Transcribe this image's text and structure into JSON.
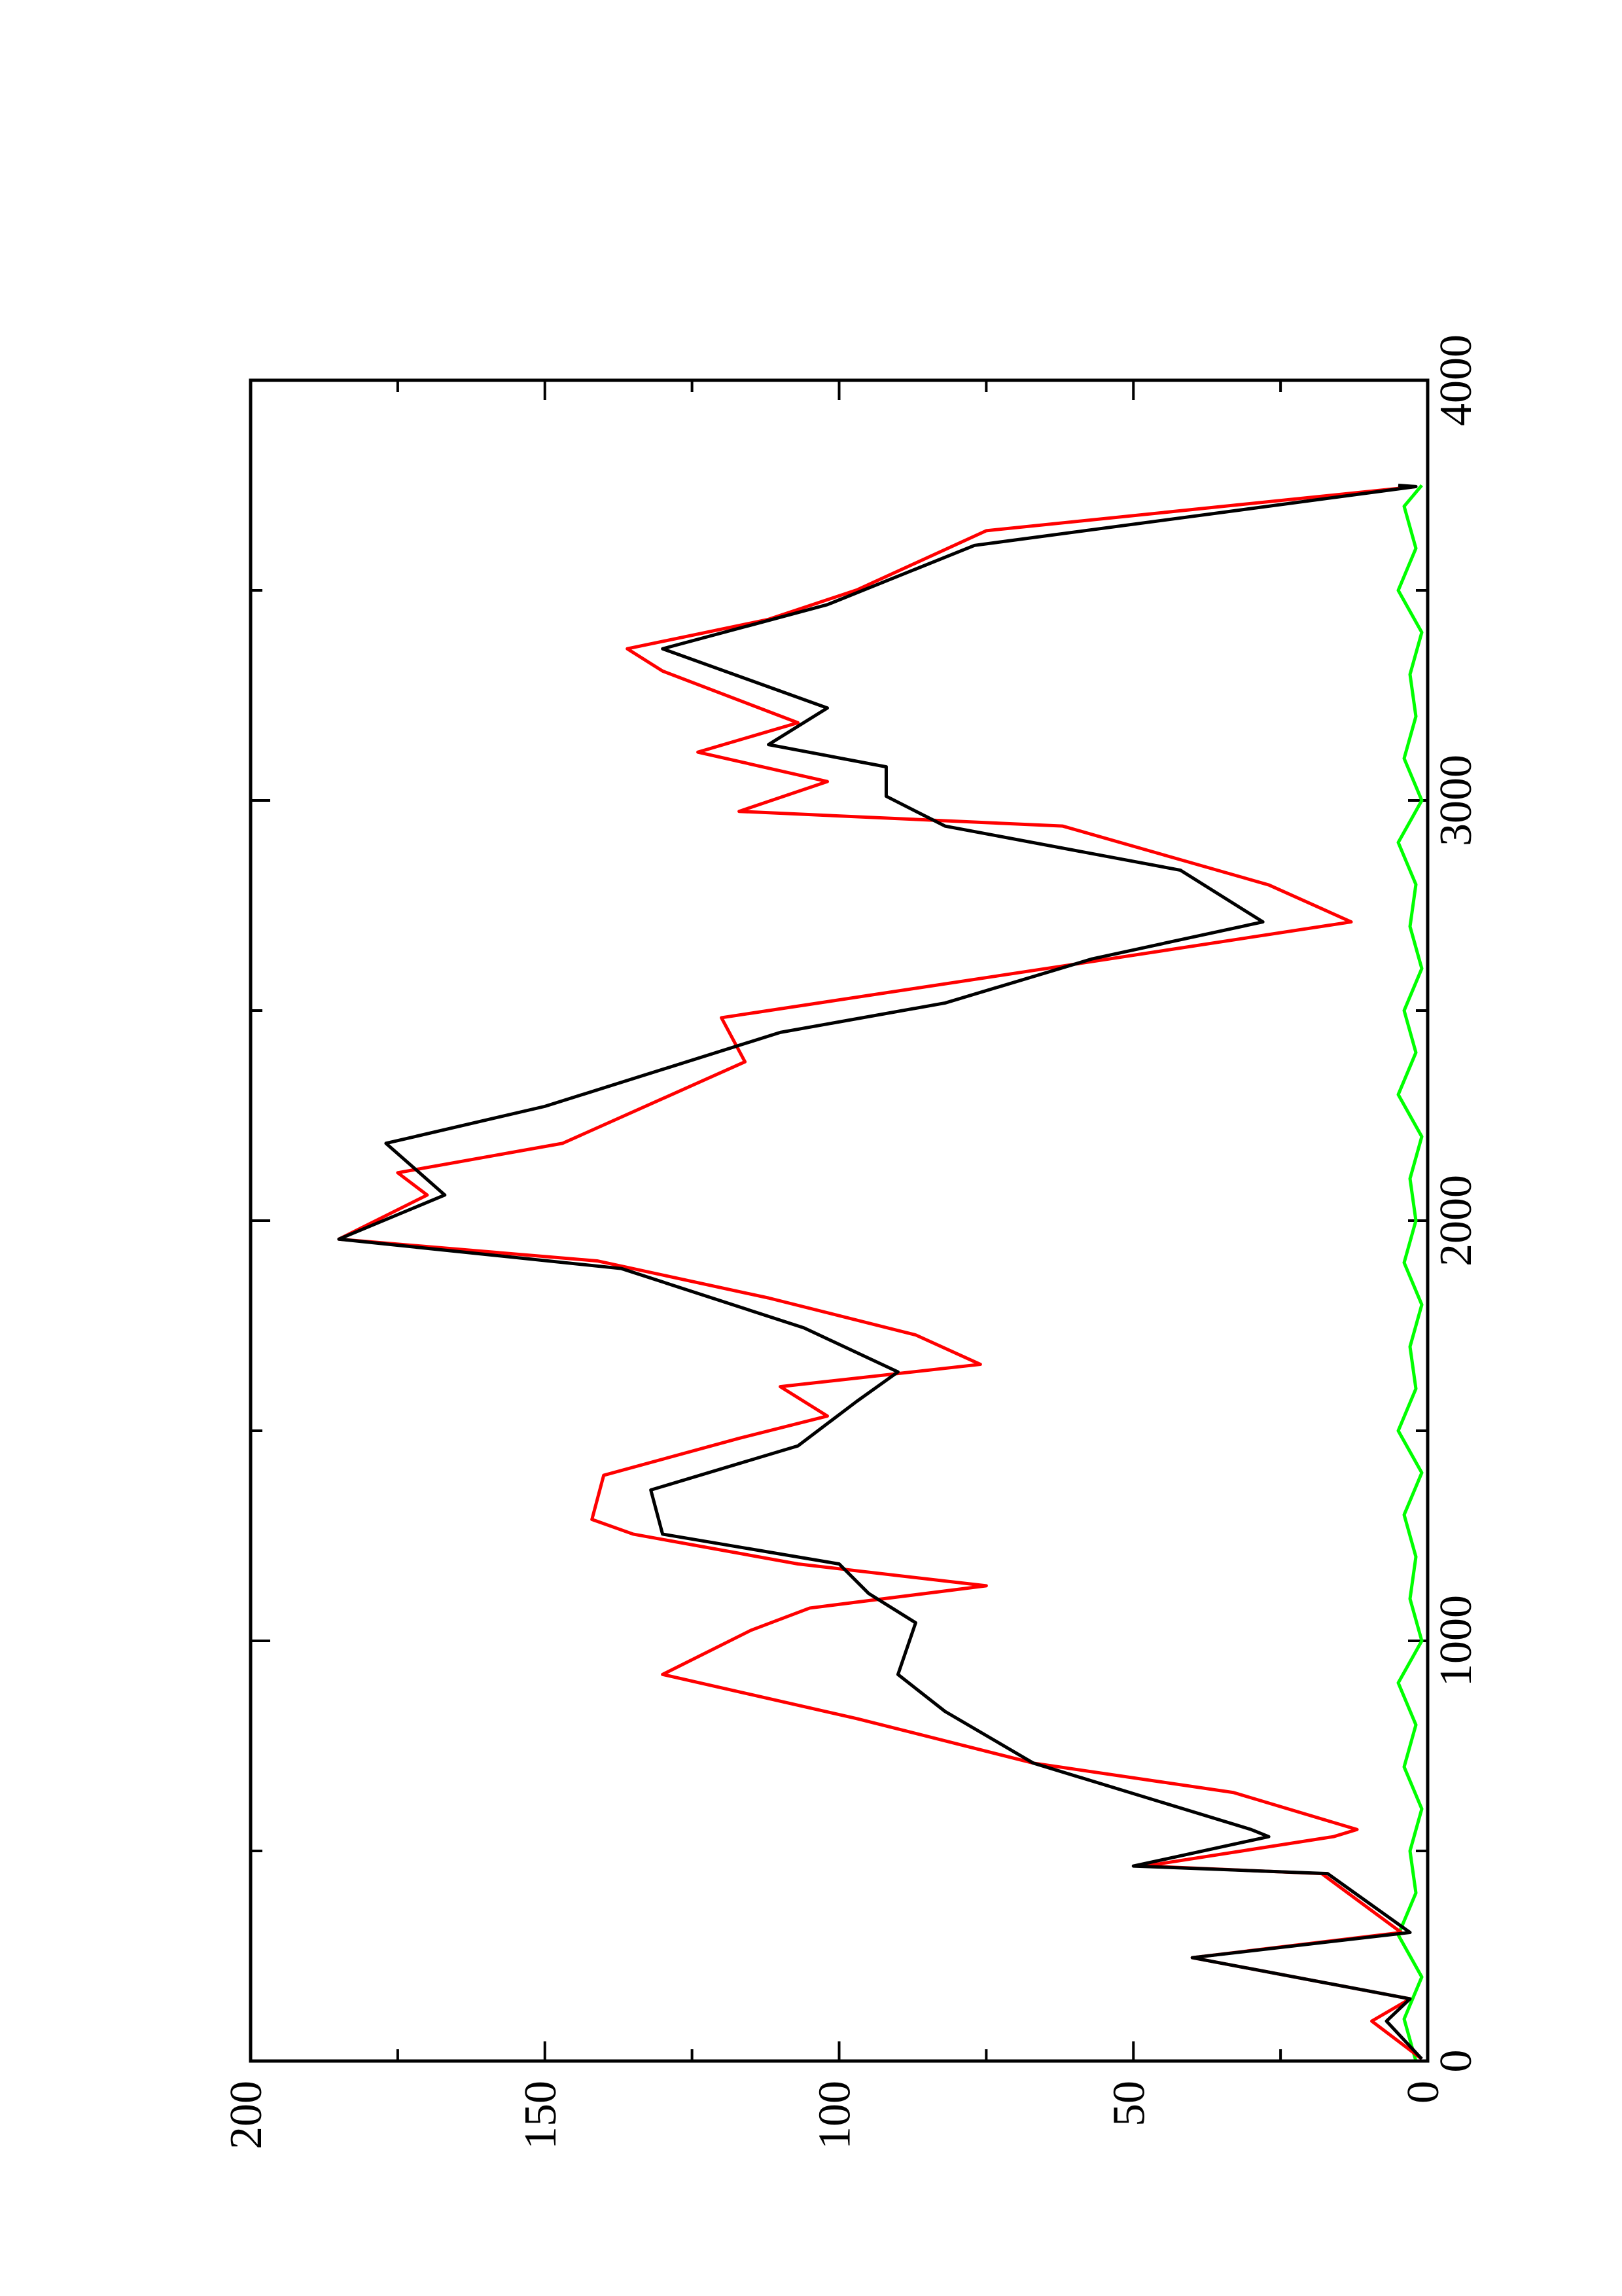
{
  "chart_data": {
    "type": "line",
    "orientation": "rotated",
    "xlim": [
      0,
      4000
    ],
    "xticks": [
      0,
      1000,
      2000,
      3000,
      4000
    ],
    "xticks_minor": [
      500,
      1500,
      2500,
      3500
    ],
    "ylim": [
      0,
      200
    ],
    "yticks": [
      0,
      50,
      100,
      150,
      200
    ],
    "yticks_minor": [
      25,
      75,
      125,
      175
    ],
    "series": [
      {
        "color": "#000000",
        "x": [
          5,
          95,
          148,
          246,
          306,
          446,
          464,
          534,
          551,
          709,
          832,
          920,
          1043,
          1113,
          1183,
          1254,
          1359,
          1464,
          1570,
          1640,
          1745,
          1886,
          1956,
          2061,
          2184,
          2272,
          2448,
          2518,
          2623,
          2711,
          2834,
          2939,
          3010,
          3080,
          3133,
          3220,
          3361,
          3466,
          3607,
          3747,
          3750
        ],
        "values": [
          1,
          7,
          3,
          40,
          3,
          17,
          50,
          27,
          30,
          67,
          82,
          90,
          87,
          95,
          100,
          130,
          132,
          107,
          97,
          90,
          106,
          137,
          185,
          167,
          177,
          150,
          110,
          82,
          57,
          28,
          42,
          82,
          92,
          92,
          112,
          102,
          130,
          102,
          77,
          2,
          5
        ]
      },
      {
        "color": "#ff0000",
        "x": [
          5,
          95,
          148,
          246,
          306,
          446,
          464,
          534,
          551,
          639,
          709,
          815,
          920,
          1025,
          1078,
          1131,
          1183,
          1254,
          1289,
          1394,
          1482,
          1535,
          1605,
          1658,
          1728,
          1816,
          1904,
          1956,
          2061,
          2114,
          2184,
          2378,
          2483,
          2553,
          2606,
          2711,
          2799,
          2939,
          2974,
          3045,
          3115,
          3185,
          3308,
          3361,
          3431,
          3501,
          3642,
          3747
        ],
        "values": [
          1,
          9.5,
          3,
          40,
          4.5,
          18,
          48,
          16,
          12,
          33,
          67,
          97,
          130,
          115,
          105,
          75,
          107,
          135,
          142,
          140,
          117,
          102,
          110,
          76,
          87,
          112,
          141,
          185,
          170,
          175,
          147,
          116,
          120,
          87,
          62,
          13,
          27,
          62,
          117,
          102,
          124,
          107,
          130,
          136,
          112,
          97,
          75,
          2
        ]
      },
      {
        "color": "#00ff00",
        "x": [
          0,
          100,
          200,
          300,
          400,
          500,
          600,
          700,
          800,
          900,
          1000,
          1100,
          1200,
          1300,
          1400,
          1500,
          1600,
          1700,
          1800,
          1900,
          2000,
          2100,
          2200,
          2300,
          2400,
          2500,
          2600,
          2700,
          2800,
          2900,
          3000,
          3100,
          3200,
          3300,
          3400,
          3500,
          3600,
          3700,
          3750
        ],
        "values": [
          2,
          4,
          1,
          5,
          2,
          3,
          1,
          4,
          2,
          5,
          1,
          3,
          2,
          4,
          1,
          5,
          2,
          3,
          1,
          4,
          2,
          3,
          1,
          5,
          2,
          4,
          1,
          3,
          2,
          5,
          1,
          4,
          2,
          3,
          1,
          5,
          2,
          4,
          1
        ]
      }
    ]
  }
}
